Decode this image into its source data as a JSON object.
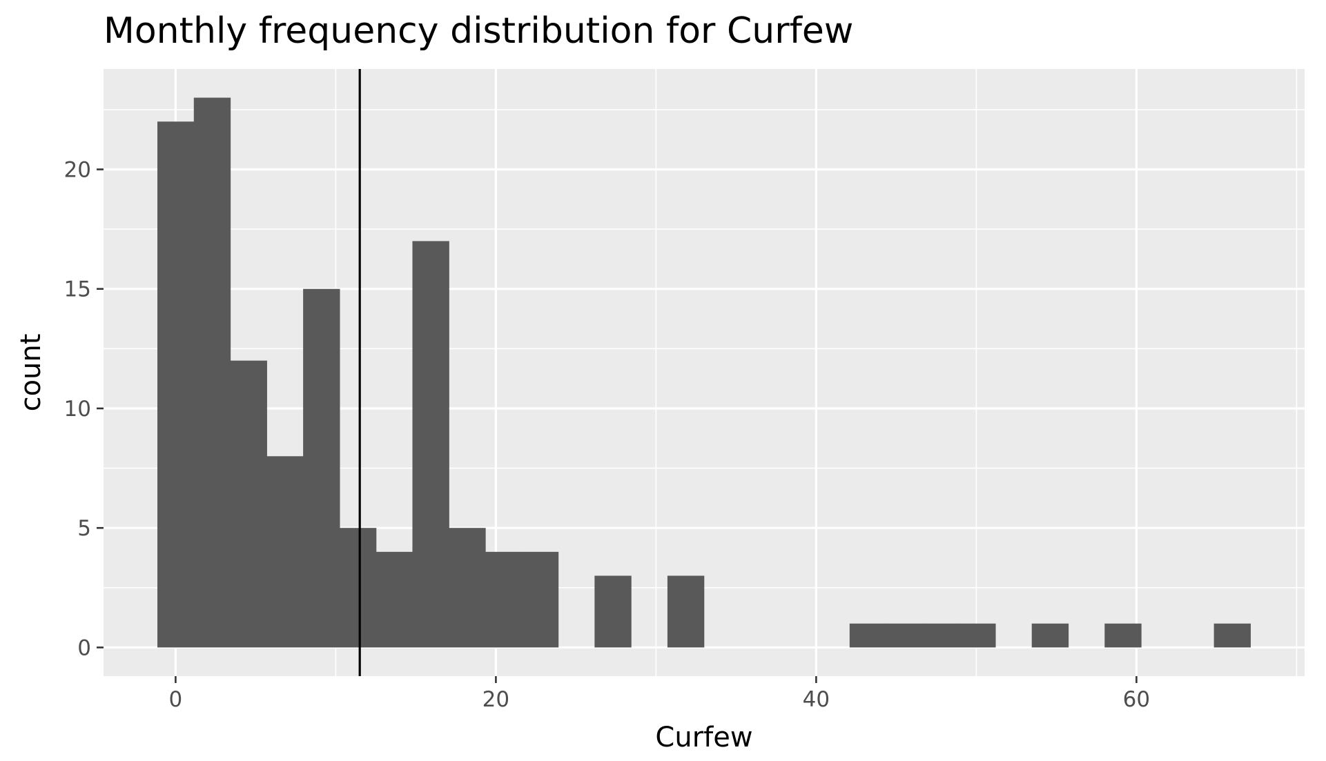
{
  "chart_data": {
    "type": "bar",
    "title": "Monthly frequency distribution for Curfew",
    "xlabel": "Curfew",
    "ylabel": "count",
    "xlim": [
      -4.5,
      70.5
    ],
    "ylim": [
      -1.2,
      24.2
    ],
    "x_ticks": [
      0,
      20,
      40,
      60
    ],
    "y_ticks": [
      0,
      5,
      10,
      15,
      20
    ],
    "bin_width": 2.275,
    "bins": [
      {
        "start": -1.1375,
        "count": 22
      },
      {
        "start": 1.1375,
        "count": 23
      },
      {
        "start": 3.4125,
        "count": 12
      },
      {
        "start": 5.6875,
        "count": 8
      },
      {
        "start": 7.9625,
        "count": 15
      },
      {
        "start": 10.2375,
        "count": 5
      },
      {
        "start": 12.5125,
        "count": 4
      },
      {
        "start": 14.7875,
        "count": 17
      },
      {
        "start": 17.0625,
        "count": 5
      },
      {
        "start": 19.3375,
        "count": 4
      },
      {
        "start": 21.6125,
        "count": 4
      },
      {
        "start": 26.1625,
        "count": 3
      },
      {
        "start": 30.7125,
        "count": 3
      },
      {
        "start": 42.0875,
        "count": 1
      },
      {
        "start": 44.3625,
        "count": 1
      },
      {
        "start": 46.6375,
        "count": 1
      },
      {
        "start": 48.9125,
        "count": 1
      },
      {
        "start": 53.4625,
        "count": 1
      },
      {
        "start": 58.0125,
        "count": 1
      },
      {
        "start": 64.8375,
        "count": 1
      }
    ],
    "vline": {
      "x": 11.5
    },
    "grid": true,
    "legend": "none",
    "colors": {
      "panel": "#ebebeb",
      "grid": "#ffffff",
      "bar": "#595959",
      "vline": "#000000"
    }
  }
}
